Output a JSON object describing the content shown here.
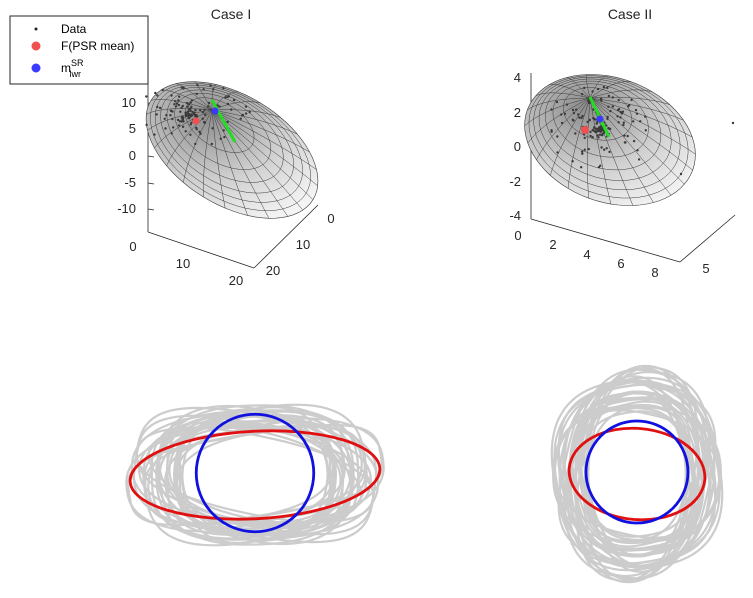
{
  "colors": {
    "surface_fill": "#d9d9d9",
    "surface_grid": "#3a3a3a",
    "data_points": "#3a3a3a",
    "psr_mean": "#f05050",
    "m_lwr": "#3b3bff",
    "green_line": "#22dd22",
    "gray_curves": "#cccccc",
    "red_ellipse": "#e01010",
    "blue_circle": "#1010e0",
    "axis": "#262626"
  },
  "legend": {
    "entries": [
      {
        "label": "Data",
        "marker": "dot"
      },
      {
        "label": "F(PSR mean)",
        "marker": "red-circle"
      },
      {
        "label": "m",
        "sup": "SR",
        "sub": "lwr",
        "marker": "blue-circle"
      }
    ]
  },
  "chart_data": [
    {
      "type": "scatter",
      "title": "Case I",
      "view": "3d",
      "z_ticks": [
        "10",
        "5",
        "0",
        "-5",
        "-10"
      ],
      "x_ticks": [
        "0",
        "10",
        "20"
      ],
      "y_ticks": [
        "0",
        "10",
        "20"
      ],
      "xlim": [
        0,
        20
      ],
      "ylim": [
        0,
        20
      ],
      "zlim": [
        -12,
        12
      ],
      "series": [
        {
          "name": "Data",
          "marker": "dot"
        },
        {
          "name": "F(PSR mean)",
          "marker": "red-circle"
        },
        {
          "name": "m_lwr^SR",
          "marker": "blue-circle"
        }
      ],
      "grid": true
    },
    {
      "type": "scatter",
      "title": "Case II",
      "view": "3d",
      "z_ticks": [
        "4",
        "2",
        "0",
        "-2",
        "-4"
      ],
      "x_ticks": [
        "0",
        "2",
        "4",
        "6",
        "8"
      ],
      "y_ticks": [
        "5"
      ],
      "xlim": [
        0,
        8
      ],
      "zlim": [
        -4,
        4
      ],
      "series": [
        {
          "name": "Data",
          "marker": "dot"
        },
        {
          "name": "F(PSR mean)",
          "marker": "red-circle"
        },
        {
          "name": "m_lwr^SR",
          "marker": "blue-circle"
        }
      ],
      "grid": true
    },
    {
      "type": "line",
      "panel": "bottom-left",
      "gray_curve_count": 30,
      "red_ellipse": {
        "rx_ratio": 1.0,
        "ry_ratio": 0.35
      },
      "blue_circle": {
        "r_ratio": 0.47
      }
    },
    {
      "type": "line",
      "panel": "bottom-right",
      "gray_curve_count": 30,
      "red_ellipse": {
        "rx_ratio": 1.0,
        "ry_ratio": 0.67
      },
      "blue_circle": {
        "r_ratio": 0.75
      }
    }
  ]
}
